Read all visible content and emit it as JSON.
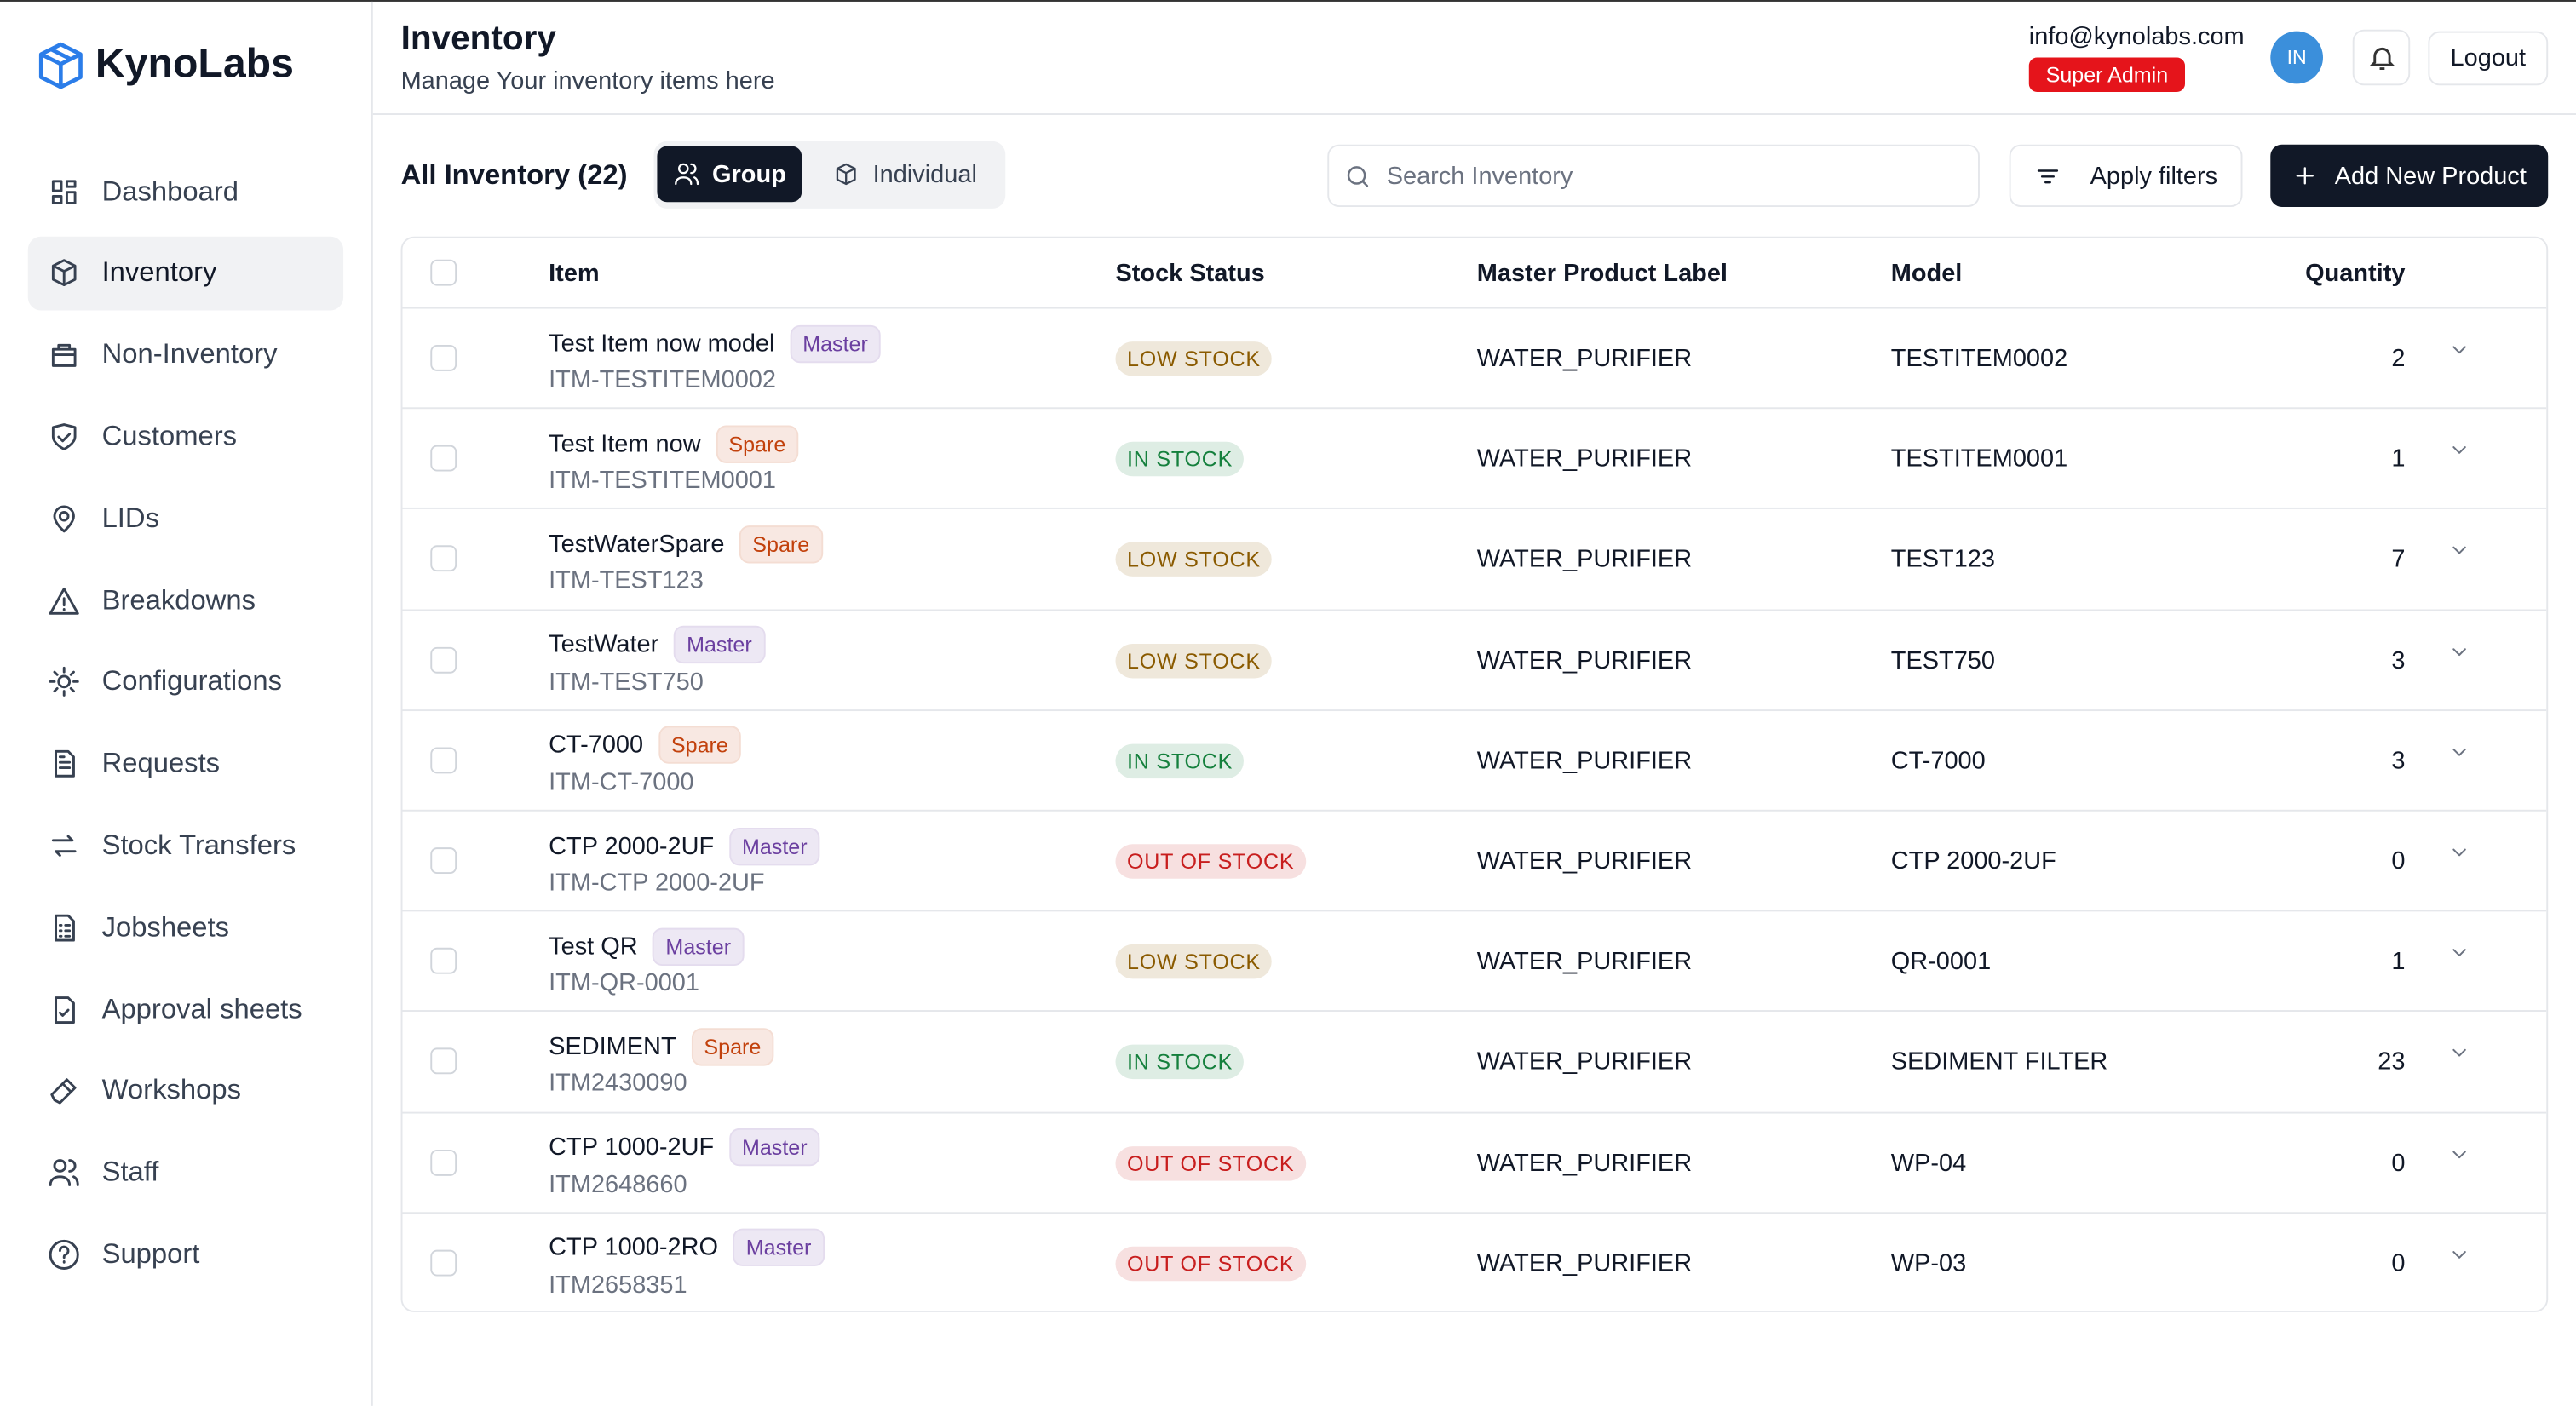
{
  "brand": "KynoLabs",
  "nav": [
    {
      "label": "Dashboard"
    },
    {
      "label": "Inventory",
      "active": true
    },
    {
      "label": "Non-Inventory"
    },
    {
      "label": "Customers"
    },
    {
      "label": "LIDs"
    },
    {
      "label": "Breakdowns"
    },
    {
      "label": "Configurations"
    },
    {
      "label": "Requests"
    },
    {
      "label": "Stock Transfers"
    },
    {
      "label": "Jobsheets"
    },
    {
      "label": "Approval sheets"
    },
    {
      "label": "Workshops"
    },
    {
      "label": "Staff"
    },
    {
      "label": "Support"
    }
  ],
  "header": {
    "title": "Inventory",
    "subtitle": "Manage Your inventory items here"
  },
  "user": {
    "email": "info@kynolabs.com",
    "role": "Super Admin",
    "initials": "IN",
    "logout": "Logout"
  },
  "toolbar": {
    "title": "All Inventory (22)",
    "views": [
      {
        "label": "Group",
        "active": true
      },
      {
        "label": "Individual"
      }
    ],
    "search_placeholder": "Search Inventory",
    "filter_button": "Apply filters",
    "add_button": "Add New Product"
  },
  "table": {
    "columns": [
      "Item",
      "Stock Status",
      "Master Product Label",
      "Model",
      "Quantity"
    ],
    "rows": [
      {
        "name": "Test Item now model",
        "tag": "Master",
        "tag_color": "#6b3fa0",
        "code": "ITM-TESTITEM0002",
        "status": "LOW STOCK",
        "status_color": "#8a5a00",
        "label": "WATER_PURIFIER",
        "model": "TESTITEM0002",
        "quantity": 2
      },
      {
        "name": "Test Item now",
        "tag": "Spare",
        "tag_color": "#c2410c",
        "code": "ITM-TESTITEM0001",
        "status": "IN STOCK",
        "status_color": "#15803d",
        "label": "WATER_PURIFIER",
        "model": "TESTITEM0001",
        "quantity": 1
      },
      {
        "name": "TestWaterSpare",
        "tag": "Spare",
        "tag_color": "#c2410c",
        "code": "ITM-TEST123",
        "status": "LOW STOCK",
        "status_color": "#8a5a00",
        "label": "WATER_PURIFIER",
        "model": "TEST123",
        "quantity": 7
      },
      {
        "name": "TestWater",
        "tag": "Master",
        "tag_color": "#6b3fa0",
        "code": "ITM-TEST750",
        "status": "LOW STOCK",
        "status_color": "#8a5a00",
        "label": "WATER_PURIFIER",
        "model": "TEST750",
        "quantity": 3
      },
      {
        "name": "CT-7000",
        "tag": "Spare",
        "tag_color": "#c2410c",
        "code": "ITM-CT-7000",
        "status": "IN STOCK",
        "status_color": "#15803d",
        "label": "WATER_PURIFIER",
        "model": "CT-7000",
        "quantity": 3
      },
      {
        "name": "CTP 2000-2UF",
        "tag": "Master",
        "tag_color": "#6b3fa0",
        "code": "ITM-CTP 2000-2UF",
        "status": "OUT OF STOCK",
        "status_color": "#c81e1e",
        "label": "WATER_PURIFIER",
        "model": "CTP 2000-2UF",
        "quantity": 0
      },
      {
        "name": "Test QR",
        "tag": "Master",
        "tag_color": "#6b3fa0",
        "code": "ITM-QR-0001",
        "status": "LOW STOCK",
        "status_color": "#8a5a00",
        "label": "WATER_PURIFIER",
        "model": "QR-0001",
        "quantity": 1
      },
      {
        "name": "SEDIMENT",
        "tag": "Spare",
        "tag_color": "#c2410c",
        "code": "ITM2430090",
        "status": "IN STOCK",
        "status_color": "#15803d",
        "label": "WATER_PURIFIER",
        "model": "SEDIMENT FILTER",
        "quantity": 23
      },
      {
        "name": "CTP 1000-2UF",
        "tag": "Master",
        "tag_color": "#6b3fa0",
        "code": "ITM2648660",
        "status": "OUT OF STOCK",
        "status_color": "#c81e1e",
        "label": "WATER_PURIFIER",
        "model": "WP-04",
        "quantity": 0
      },
      {
        "name": "CTP 1000-2RO",
        "tag": "Master",
        "tag_color": "#6b3fa0",
        "code": "ITM2658351",
        "status": "OUT OF STOCK",
        "status_color": "#c81e1e",
        "label": "WATER_PURIFIER",
        "model": "WP-03",
        "quantity": 0
      }
    ]
  }
}
